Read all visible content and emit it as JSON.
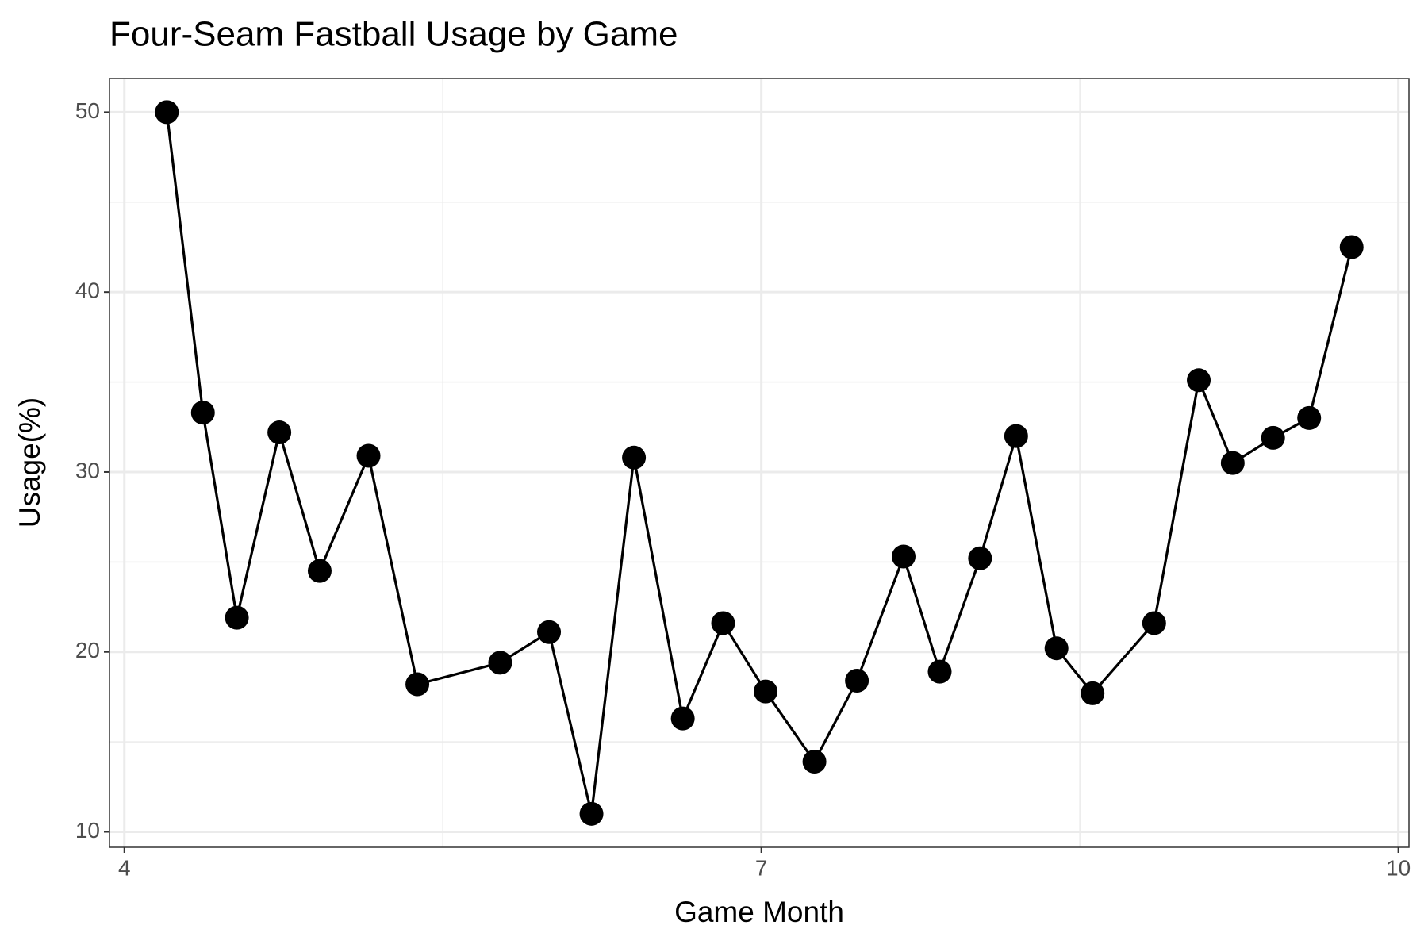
{
  "chart_data": {
    "type": "line",
    "title": "Four-Seam Fastball Usage by Game",
    "x_label": "Game Month",
    "y_label": "Usage(%)",
    "x": [
      4.2,
      4.37,
      4.53,
      4.73,
      4.92,
      5.15,
      5.38,
      5.77,
      6.0,
      6.2,
      6.4,
      6.63,
      6.82,
      7.02,
      7.25,
      7.45,
      7.67,
      7.84,
      8.03,
      8.2,
      8.39,
      8.56,
      8.85,
      9.06,
      9.22,
      9.41,
      9.58,
      9.78
    ],
    "series": [
      {
        "name": "Usage",
        "color": "#000000",
        "values": [
          50.0,
          33.3,
          21.9,
          32.2,
          24.5,
          30.9,
          18.2,
          19.4,
          21.1,
          11.0,
          30.8,
          16.3,
          21.6,
          17.8,
          13.9,
          18.4,
          25.3,
          18.9,
          25.2,
          32.0,
          20.2,
          17.7,
          21.6,
          35.1,
          30.5,
          31.9,
          33.0,
          42.5
        ]
      }
    ],
    "xlim": [
      3.93,
      10.05
    ],
    "xticks": [
      4,
      7,
      10
    ],
    "x_minor_breaks": [
      5.5,
      8.5
    ],
    "ylim": [
      9.14,
      51.87
    ],
    "yticks": [
      10,
      20,
      30,
      40,
      50
    ],
    "y_minor_breaks": [
      15,
      25,
      35,
      45
    ],
    "grid": true,
    "markers": true
  }
}
